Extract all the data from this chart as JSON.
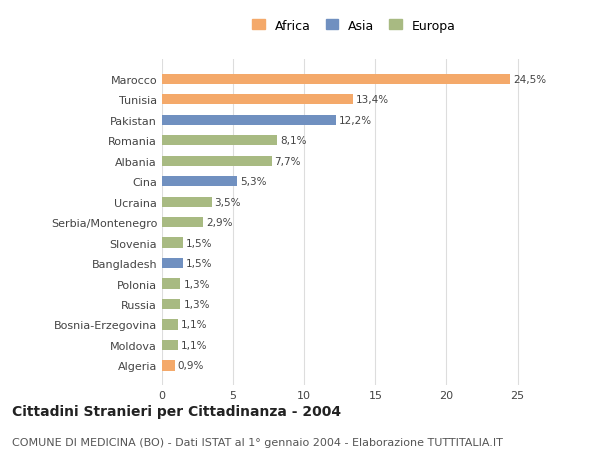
{
  "categories": [
    "Marocco",
    "Tunisia",
    "Pakistan",
    "Romania",
    "Albania",
    "Cina",
    "Ucraina",
    "Serbia/Montenegro",
    "Slovenia",
    "Bangladesh",
    "Polonia",
    "Russia",
    "Bosnia-Erzegovina",
    "Moldova",
    "Algeria"
  ],
  "values": [
    24.5,
    13.4,
    12.2,
    8.1,
    7.7,
    5.3,
    3.5,
    2.9,
    1.5,
    1.5,
    1.3,
    1.3,
    1.1,
    1.1,
    0.9
  ],
  "labels": [
    "24,5%",
    "13,4%",
    "12,2%",
    "8,1%",
    "7,7%",
    "5,3%",
    "3,5%",
    "2,9%",
    "1,5%",
    "1,5%",
    "1,3%",
    "1,3%",
    "1,1%",
    "1,1%",
    "0,9%"
  ],
  "continents": [
    "Africa",
    "Africa",
    "Asia",
    "Europa",
    "Europa",
    "Asia",
    "Europa",
    "Europa",
    "Europa",
    "Asia",
    "Europa",
    "Europa",
    "Europa",
    "Europa",
    "Africa"
  ],
  "colors": {
    "Africa": "#F4A96A",
    "Asia": "#7090C0",
    "Europa": "#A8BA82"
  },
  "legend_labels": [
    "Africa",
    "Asia",
    "Europa"
  ],
  "xlim": [
    0,
    27
  ],
  "xticks": [
    0,
    5,
    10,
    15,
    20,
    25
  ],
  "title": "Cittadini Stranieri per Cittadinanza - 2004",
  "subtitle": "COMUNE DI MEDICINA (BO) - Dati ISTAT al 1° gennaio 2004 - Elaborazione TUTTITALIA.IT",
  "bg_color": "#ffffff",
  "bar_height": 0.5,
  "title_fontsize": 10,
  "subtitle_fontsize": 8,
  "label_fontsize": 7.5,
  "tick_fontsize": 8,
  "legend_fontsize": 9
}
